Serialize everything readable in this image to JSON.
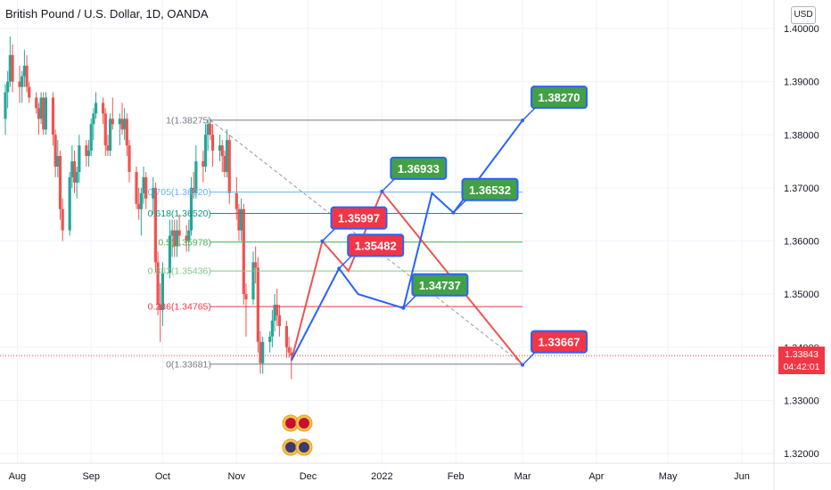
{
  "header": {
    "title": "British Pound / U.S. Dollar, 1D, OANDA",
    "currency": "USD"
  },
  "price_tag": {
    "price": "1.33843",
    "countdown": "04:42:01"
  },
  "colors": {
    "up": "#26a69a",
    "down": "#ef5350",
    "projection": "#2962ff",
    "target_up": "#43a047",
    "target_down": "#f23645"
  },
  "chart_data": {
    "type": "candlestick",
    "symbol": "British Pound / U.S. Dollar",
    "interval": "1D",
    "ylim": [
      1.3175,
      1.4025
    ],
    "yticks": [
      "1.32000",
      "1.33000",
      "1.34000",
      "1.35000",
      "1.36000",
      "1.37000",
      "1.38000",
      "1.39000",
      "1.40000"
    ],
    "xticks": [
      {
        "label": "Aug",
        "date": "2021-08-01"
      },
      {
        "label": "Sep",
        "date": "2021-09-01"
      },
      {
        "label": "Oct",
        "date": "2021-10-01"
      },
      {
        "label": "Nov",
        "date": "2021-11-01"
      },
      {
        "label": "Dec",
        "date": "2021-12-01"
      },
      {
        "label": "2022",
        "date": "2022-01-01"
      },
      {
        "label": "Feb",
        "date": "2022-02-01"
      },
      {
        "label": "Mar",
        "date": "2022-03-01"
      },
      {
        "label": "Apr",
        "date": "2022-04-01"
      },
      {
        "label": "May",
        "date": "2022-05-01"
      },
      {
        "label": "Jun",
        "date": "2022-06-01"
      }
    ],
    "xrange": [
      "2021-07-27",
      "2022-06-07"
    ],
    "candles": [
      {
        "d": "2021-07-27",
        "o": 1.383,
        "h": 1.3895,
        "l": 1.38,
        "c": 1.388
      },
      {
        "d": "2021-07-28",
        "o": 1.388,
        "h": 1.392,
        "l": 1.385,
        "c": 1.39
      },
      {
        "d": "2021-07-29",
        "o": 1.39,
        "h": 1.3985,
        "l": 1.389,
        "c": 1.395
      },
      {
        "d": "2021-07-30",
        "o": 1.395,
        "h": 1.397,
        "l": 1.388,
        "c": 1.39
      },
      {
        "d": "2021-08-02",
        "o": 1.39,
        "h": 1.393,
        "l": 1.386,
        "c": 1.389
      },
      {
        "d": "2021-08-03",
        "o": 1.389,
        "h": 1.392,
        "l": 1.386,
        "c": 1.391
      },
      {
        "d": "2021-08-04",
        "o": 1.391,
        "h": 1.396,
        "l": 1.389,
        "c": 1.393
      },
      {
        "d": "2021-08-05",
        "o": 1.393,
        "h": 1.395,
        "l": 1.388,
        "c": 1.389
      },
      {
        "d": "2021-08-06",
        "o": 1.389,
        "h": 1.39,
        "l": 1.386,
        "c": 1.387
      },
      {
        "d": "2021-08-09",
        "o": 1.387,
        "h": 1.388,
        "l": 1.384,
        "c": 1.385
      },
      {
        "d": "2021-08-10",
        "o": 1.385,
        "h": 1.386,
        "l": 1.38,
        "c": 1.383
      },
      {
        "d": "2021-08-11",
        "o": 1.383,
        "h": 1.388,
        "l": 1.382,
        "c": 1.387
      },
      {
        "d": "2021-08-12",
        "o": 1.387,
        "h": 1.388,
        "l": 1.38,
        "c": 1.381
      },
      {
        "d": "2021-08-13",
        "o": 1.381,
        "h": 1.388,
        "l": 1.38,
        "c": 1.387
      },
      {
        "d": "2021-08-16",
        "o": 1.387,
        "h": 1.388,
        "l": 1.378,
        "c": 1.38
      },
      {
        "d": "2021-08-17",
        "o": 1.38,
        "h": 1.381,
        "l": 1.372,
        "c": 1.374
      },
      {
        "d": "2021-08-18",
        "o": 1.374,
        "h": 1.379,
        "l": 1.372,
        "c": 1.376
      },
      {
        "d": "2021-08-19",
        "o": 1.376,
        "h": 1.377,
        "l": 1.364,
        "c": 1.366
      },
      {
        "d": "2021-08-20",
        "o": 1.366,
        "h": 1.368,
        "l": 1.36,
        "c": 1.362
      },
      {
        "d": "2021-08-23",
        "o": 1.362,
        "h": 1.373,
        "l": 1.361,
        "c": 1.372
      },
      {
        "d": "2021-08-24",
        "o": 1.372,
        "h": 1.378,
        "l": 1.37,
        "c": 1.375
      },
      {
        "d": "2021-08-25",
        "o": 1.375,
        "h": 1.377,
        "l": 1.369,
        "c": 1.371
      },
      {
        "d": "2021-08-26",
        "o": 1.371,
        "h": 1.374,
        "l": 1.368,
        "c": 1.373
      },
      {
        "d": "2021-08-27",
        "o": 1.373,
        "h": 1.38,
        "l": 1.371,
        "c": 1.378
      },
      {
        "d": "2021-08-30",
        "o": 1.378,
        "h": 1.379,
        "l": 1.374,
        "c": 1.376
      },
      {
        "d": "2021-08-31",
        "o": 1.376,
        "h": 1.379,
        "l": 1.374,
        "c": 1.377
      },
      {
        "d": "2021-09-01",
        "o": 1.377,
        "h": 1.383,
        "l": 1.376,
        "c": 1.382
      },
      {
        "d": "2021-09-02",
        "o": 1.382,
        "h": 1.385,
        "l": 1.379,
        "c": 1.384
      },
      {
        "d": "2021-09-03",
        "o": 1.384,
        "h": 1.388,
        "l": 1.383,
        "c": 1.386
      },
      {
        "d": "2021-09-06",
        "o": 1.386,
        "h": 1.387,
        "l": 1.382,
        "c": 1.384
      },
      {
        "d": "2021-09-07",
        "o": 1.384,
        "h": 1.385,
        "l": 1.376,
        "c": 1.378
      },
      {
        "d": "2021-09-08",
        "o": 1.378,
        "h": 1.38,
        "l": 1.376,
        "c": 1.377
      },
      {
        "d": "2021-09-09",
        "o": 1.377,
        "h": 1.384,
        "l": 1.376,
        "c": 1.383
      },
      {
        "d": "2021-09-10",
        "o": 1.383,
        "h": 1.387,
        "l": 1.381,
        "c": 1.382
      },
      {
        "d": "2021-09-13",
        "o": 1.382,
        "h": 1.384,
        "l": 1.378,
        "c": 1.383
      },
      {
        "d": "2021-09-14",
        "o": 1.383,
        "h": 1.386,
        "l": 1.38,
        "c": 1.381
      },
      {
        "d": "2021-09-15",
        "o": 1.381,
        "h": 1.385,
        "l": 1.379,
        "c": 1.383
      },
      {
        "d": "2021-09-16",
        "o": 1.383,
        "h": 1.384,
        "l": 1.376,
        "c": 1.378
      },
      {
        "d": "2021-09-17",
        "o": 1.378,
        "h": 1.379,
        "l": 1.371,
        "c": 1.373
      },
      {
        "d": "2021-09-20",
        "o": 1.373,
        "h": 1.374,
        "l": 1.366,
        "c": 1.367
      },
      {
        "d": "2021-09-21",
        "o": 1.367,
        "h": 1.37,
        "l": 1.364,
        "c": 1.366
      },
      {
        "d": "2021-09-22",
        "o": 1.366,
        "h": 1.37,
        "l": 1.361,
        "c": 1.369
      },
      {
        "d": "2021-09-23",
        "o": 1.369,
        "h": 1.374,
        "l": 1.367,
        "c": 1.372
      },
      {
        "d": "2021-09-24",
        "o": 1.372,
        "h": 1.373,
        "l": 1.366,
        "c": 1.368
      },
      {
        "d": "2021-09-27",
        "o": 1.368,
        "h": 1.372,
        "l": 1.365,
        "c": 1.37
      },
      {
        "d": "2021-09-28",
        "o": 1.37,
        "h": 1.371,
        "l": 1.354,
        "c": 1.356
      },
      {
        "d": "2021-09-29",
        "o": 1.356,
        "h": 1.358,
        "l": 1.346,
        "c": 1.348
      },
      {
        "d": "2021-09-30",
        "o": 1.348,
        "h": 1.352,
        "l": 1.341,
        "c": 1.347
      },
      {
        "d": "2021-10-01",
        "o": 1.347,
        "h": 1.356,
        "l": 1.344,
        "c": 1.354
      },
      {
        "d": "2021-10-04",
        "o": 1.354,
        "h": 1.364,
        "l": 1.353,
        "c": 1.361
      },
      {
        "d": "2021-10-05",
        "o": 1.361,
        "h": 1.364,
        "l": 1.357,
        "c": 1.362
      },
      {
        "d": "2021-10-06",
        "o": 1.362,
        "h": 1.364,
        "l": 1.357,
        "c": 1.359
      },
      {
        "d": "2021-10-07",
        "o": 1.359,
        "h": 1.364,
        "l": 1.357,
        "c": 1.362
      },
      {
        "d": "2021-10-08",
        "o": 1.362,
        "h": 1.365,
        "l": 1.359,
        "c": 1.361
      },
      {
        "d": "2021-10-11",
        "o": 1.361,
        "h": 1.363,
        "l": 1.358,
        "c": 1.36
      },
      {
        "d": "2021-10-12",
        "o": 1.36,
        "h": 1.364,
        "l": 1.358,
        "c": 1.362
      },
      {
        "d": "2021-10-13",
        "o": 1.362,
        "h": 1.372,
        "l": 1.361,
        "c": 1.37
      },
      {
        "d": "2021-10-14",
        "o": 1.37,
        "h": 1.373,
        "l": 1.368,
        "c": 1.369
      },
      {
        "d": "2021-10-15",
        "o": 1.369,
        "h": 1.378,
        "l": 1.368,
        "c": 1.375
      },
      {
        "d": "2021-10-18",
        "o": 1.375,
        "h": 1.377,
        "l": 1.371,
        "c": 1.374
      },
      {
        "d": "2021-10-19",
        "o": 1.374,
        "h": 1.382,
        "l": 1.373,
        "c": 1.38
      },
      {
        "d": "2021-10-20",
        "o": 1.38,
        "h": 1.383,
        "l": 1.377,
        "c": 1.382
      },
      {
        "d": "2021-10-21",
        "o": 1.382,
        "h": 1.383,
        "l": 1.379,
        "c": 1.38
      },
      {
        "d": "2021-10-22",
        "o": 1.38,
        "h": 1.382,
        "l": 1.374,
        "c": 1.377
      },
      {
        "d": "2021-10-25",
        "o": 1.377,
        "h": 1.38,
        "l": 1.375,
        "c": 1.378
      },
      {
        "d": "2021-10-26",
        "o": 1.378,
        "h": 1.379,
        "l": 1.373,
        "c": 1.376
      },
      {
        "d": "2021-10-27",
        "o": 1.376,
        "h": 1.377,
        "l": 1.372,
        "c": 1.373
      },
      {
        "d": "2021-10-28",
        "o": 1.373,
        "h": 1.381,
        "l": 1.372,
        "c": 1.379
      },
      {
        "d": "2021-10-29",
        "o": 1.379,
        "h": 1.38,
        "l": 1.367,
        "c": 1.369
      },
      {
        "d": "2021-11-01",
        "o": 1.369,
        "h": 1.372,
        "l": 1.364,
        "c": 1.366
      },
      {
        "d": "2021-11-02",
        "o": 1.366,
        "h": 1.367,
        "l": 1.36,
        "c": 1.362
      },
      {
        "d": "2021-11-03",
        "o": 1.362,
        "h": 1.368,
        "l": 1.36,
        "c": 1.366
      },
      {
        "d": "2021-11-04",
        "o": 1.366,
        "h": 1.367,
        "l": 1.348,
        "c": 1.35
      },
      {
        "d": "2021-11-05",
        "o": 1.35,
        "h": 1.352,
        "l": 1.342,
        "c": 1.349
      },
      {
        "d": "2021-11-08",
        "o": 1.349,
        "h": 1.358,
        "l": 1.348,
        "c": 1.356
      },
      {
        "d": "2021-11-09",
        "o": 1.356,
        "h": 1.359,
        "l": 1.352,
        "c": 1.355
      },
      {
        "d": "2021-11-10",
        "o": 1.355,
        "h": 1.357,
        "l": 1.339,
        "c": 1.341
      },
      {
        "d": "2021-11-11",
        "o": 1.341,
        "h": 1.343,
        "l": 1.335,
        "c": 1.337
      },
      {
        "d": "2021-11-12",
        "o": 1.337,
        "h": 1.342,
        "l": 1.335,
        "c": 1.341
      },
      {
        "d": "2021-11-15",
        "o": 1.341,
        "h": 1.343,
        "l": 1.339,
        "c": 1.342
      },
      {
        "d": "2021-11-16",
        "o": 1.342,
        "h": 1.347,
        "l": 1.34,
        "c": 1.345
      },
      {
        "d": "2021-11-17",
        "o": 1.345,
        "h": 1.35,
        "l": 1.343,
        "c": 1.348
      },
      {
        "d": "2021-11-18",
        "o": 1.348,
        "h": 1.351,
        "l": 1.344,
        "c": 1.346
      },
      {
        "d": "2021-11-19",
        "o": 1.346,
        "h": 1.348,
        "l": 1.342,
        "c": 1.344
      },
      {
        "d": "2021-11-22",
        "o": 1.344,
        "h": 1.345,
        "l": 1.338,
        "c": 1.34
      },
      {
        "d": "2021-11-23",
        "o": 1.34,
        "h": 1.342,
        "l": 1.338,
        "c": 1.339
      },
      {
        "d": "2021-11-24",
        "o": 1.339,
        "h": 1.34,
        "l": 1.334,
        "c": 1.3384
      }
    ],
    "fib_levels": [
      {
        "ratio": "1",
        "price": 1.38275,
        "label": "1(1.38275)",
        "color": "#787b86"
      },
      {
        "ratio": "0.705",
        "price": 1.3692,
        "label": "0.705(1.36920)",
        "color": "#64b5f6"
      },
      {
        "ratio": "0.618",
        "price": 1.3652,
        "label": "0.618(1.36520)",
        "color": "#089981"
      },
      {
        "ratio": "0.5",
        "price": 1.35978,
        "label": "0.5(1.35978)",
        "color": "#4caf50"
      },
      {
        "ratio": "0.382",
        "price": 1.35436,
        "label": "0.382(1.35436)",
        "color": "#81c784"
      },
      {
        "ratio": "0.236",
        "price": 1.34765,
        "label": "0.236(1.34765)",
        "color": "#f23645"
      },
      {
        "ratio": "0",
        "price": 1.33681,
        "label": "0(1.33681)",
        "color": "#787b86"
      }
    ],
    "fib_anchor": {
      "start_date": "2021-10-21",
      "end_date": "2022-03-01",
      "diag_from": {
        "date": "2021-10-21",
        "price": 1.38275
      },
      "diag_to": {
        "date": "2022-03-01",
        "price": 1.33681
      }
    },
    "projection_up": [
      {
        "date": "2021-11-24",
        "price": 1.3375
      },
      {
        "date": "2021-12-14",
        "price": 1.35482
      },
      {
        "date": "2021-12-22",
        "price": 1.35
      },
      {
        "date": "2022-01-10",
        "price": 1.34737
      },
      {
        "date": "2022-01-22",
        "price": 1.369
      },
      {
        "date": "2022-01-31",
        "price": 1.36532
      },
      {
        "date": "2022-03-01",
        "price": 1.3827
      }
    ],
    "projection_down": [
      {
        "date": "2021-11-24",
        "price": 1.3375
      },
      {
        "date": "2021-12-07",
        "price": 1.35997
      },
      {
        "date": "2021-12-18",
        "price": 1.35436
      },
      {
        "date": "2022-01-01",
        "price": 1.36933
      },
      {
        "date": "2022-03-01",
        "price": 1.33667
      }
    ],
    "targets": [
      {
        "text": "1.38270",
        "date": "2022-03-01",
        "price": 1.3827,
        "kind": "up",
        "anchor": "right"
      },
      {
        "text": "1.36933",
        "date": "2022-01-01",
        "price": 1.36933,
        "kind": "up",
        "anchor": "right"
      },
      {
        "text": "1.36532",
        "date": "2022-01-31",
        "price": 1.36532,
        "kind": "up",
        "anchor": "right"
      },
      {
        "text": "1.35997",
        "date": "2021-12-07",
        "price": 1.35997,
        "kind": "down",
        "anchor": "right"
      },
      {
        "text": "1.35482",
        "date": "2021-12-14",
        "price": 1.35482,
        "kind": "down",
        "anchor": "right"
      },
      {
        "text": "1.34737",
        "date": "2022-01-10",
        "price": 1.34737,
        "kind": "up",
        "anchor": "right"
      },
      {
        "text": "1.33667",
        "date": "2022-03-01",
        "price": 1.33667,
        "kind": "down",
        "anchor": "right"
      }
    ],
    "current_price": 1.33843,
    "grid": true
  }
}
